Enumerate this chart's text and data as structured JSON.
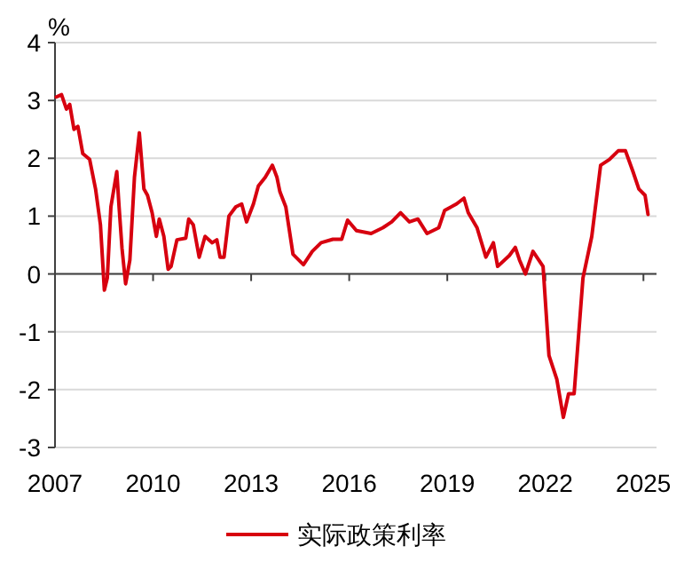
{
  "chart_data": {
    "type": "line",
    "ylabel": "%",
    "x": [
      2007.04,
      2007.2,
      2007.35,
      2007.45,
      2007.58,
      2007.7,
      2007.85,
      2008.06,
      2008.24,
      2008.39,
      2008.51,
      2008.6,
      2008.71,
      2008.89,
      2008.96,
      2009.05,
      2009.16,
      2009.29,
      2009.43,
      2009.58,
      2009.72,
      2009.83,
      2009.97,
      2010.1,
      2010.19,
      2010.33,
      2010.46,
      2010.55,
      2010.73,
      2011.0,
      2011.09,
      2011.23,
      2011.41,
      2011.59,
      2011.81,
      2011.95,
      2012.05,
      2012.17,
      2012.32,
      2012.53,
      2012.71,
      2012.86,
      2013.07,
      2013.22,
      2013.43,
      2013.65,
      2013.79,
      2013.88,
      2014.06,
      2014.28,
      2014.6,
      2014.87,
      2015.14,
      2015.5,
      2015.77,
      2015.95,
      2016.22,
      2016.67,
      2017.03,
      2017.3,
      2017.57,
      2017.84,
      2018.1,
      2018.38,
      2018.74,
      2018.92,
      2019.28,
      2019.51,
      2019.64,
      2019.91,
      2020.18,
      2020.41,
      2020.54,
      2020.9,
      2021.08,
      2021.21,
      2021.39,
      2021.62,
      2021.93,
      2022.11,
      2022.35,
      2022.55,
      2022.71,
      2022.88,
      2023.15,
      2023.42,
      2023.69,
      2023.96,
      2024.23,
      2024.45,
      2024.68,
      2024.86,
      2025.05,
      2025.14
    ],
    "series": [
      {
        "name": "实际政策利率",
        "color": "#d7000f",
        "values": [
          3.06,
          3.1,
          2.85,
          2.93,
          2.5,
          2.55,
          2.08,
          1.98,
          1.47,
          0.85,
          -0.28,
          -0.07,
          1.16,
          1.77,
          1.16,
          0.44,
          -0.17,
          0.24,
          1.67,
          2.44,
          1.47,
          1.36,
          1.06,
          0.65,
          0.95,
          0.65,
          0.08,
          0.13,
          0.59,
          0.62,
          0.95,
          0.85,
          0.29,
          0.65,
          0.54,
          0.59,
          0.29,
          0.29,
          1.0,
          1.16,
          1.21,
          0.9,
          1.21,
          1.52,
          1.67,
          1.88,
          1.67,
          1.42,
          1.16,
          0.34,
          0.16,
          0.39,
          0.54,
          0.6,
          0.6,
          0.93,
          0.75,
          0.7,
          0.8,
          0.9,
          1.06,
          0.9,
          0.95,
          0.7,
          0.8,
          1.1,
          1.21,
          1.31,
          1.06,
          0.8,
          0.29,
          0.54,
          0.13,
          0.32,
          0.46,
          0.24,
          0.0,
          0.39,
          0.13,
          -1.41,
          -1.82,
          -2.48,
          -2.07,
          -2.07,
          -0.07,
          0.65,
          1.88,
          1.98,
          2.13,
          2.13,
          1.77,
          1.47,
          1.36,
          1.03
        ]
      }
    ],
    "xlim": [
      2007,
      2025.4
    ],
    "xticks": [
      2007,
      2010,
      2013,
      2016,
      2019,
      2022,
      2025
    ],
    "ylim": [
      -3,
      4
    ],
    "yticks": [
      -3,
      -2,
      -1,
      0,
      1,
      2,
      3,
      4
    ],
    "grid": "y",
    "legend": "bottom",
    "line_style": "solid",
    "marker": "none"
  }
}
